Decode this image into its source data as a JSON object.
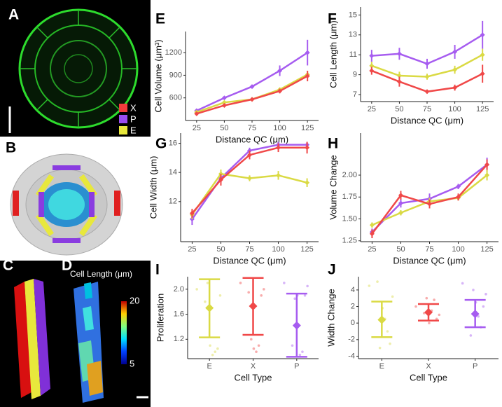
{
  "panel_labels": [
    "A",
    "B",
    "C",
    "D",
    "E",
    "F",
    "G",
    "H",
    "I",
    "J"
  ],
  "legend": [
    {
      "name": "X",
      "color": "#f03c3c"
    },
    {
      "name": "P",
      "color": "#9a4cf0"
    },
    {
      "name": "E",
      "color": "#e8e83c"
    }
  ],
  "colorbar": {
    "title": "Cell Length (μm)",
    "lim": [
      5,
      20
    ],
    "ticks": [
      20,
      5
    ]
  },
  "chart_data": [
    {
      "type": "line",
      "x_label": "Distance QC (μm)",
      "y_label": "Cell Volume (μm³)",
      "x": [
        25,
        50,
        75,
        100,
        125
      ],
      "xlim": [
        15,
        135
      ],
      "xticks": [
        25,
        50,
        75,
        100,
        125
      ],
      "ylim": [
        300,
        1480
      ],
      "yticks": [
        600,
        900,
        1200
      ],
      "series": [
        {
          "color": "#a65cf0",
          "values": [
            430,
            600,
            750,
            960,
            1200
          ],
          "errors": [
            10,
            20,
            20,
            70,
            170
          ]
        },
        {
          "color": "#dada44",
          "values": [
            410,
            540,
            580,
            710,
            910
          ],
          "errors": [
            10,
            15,
            15,
            20,
            40
          ]
        },
        {
          "color": "#f04848",
          "values": [
            390,
            500,
            580,
            690,
            890
          ],
          "errors": [
            10,
            20,
            20,
            30,
            70
          ]
        }
      ]
    },
    {
      "type": "line",
      "x_label": "Distance QC (μm)",
      "y_label": "Cell Length (μm)",
      "x": [
        25,
        50,
        75,
        100,
        125
      ],
      "xlim": [
        15,
        135
      ],
      "xticks": [
        25,
        50,
        75,
        100,
        125
      ],
      "ylim": [
        6.3,
        15.8
      ],
      "yticks": [
        7,
        9,
        11,
        13,
        15
      ],
      "series": [
        {
          "color": "#a65cf0",
          "values": [
            10.9,
            11.1,
            10.1,
            11.3,
            13.0
          ],
          "errors": [
            0.6,
            0.6,
            0.5,
            0.7,
            1.4
          ]
        },
        {
          "color": "#dada44",
          "values": [
            9.9,
            8.9,
            8.8,
            9.5,
            11.0
          ],
          "errors": [
            0.4,
            0.4,
            0.3,
            0.4,
            0.6
          ]
        },
        {
          "color": "#f04848",
          "values": [
            9.4,
            8.3,
            7.3,
            7.7,
            9.1
          ],
          "errors": [
            0.4,
            0.5,
            0.2,
            0.3,
            0.9
          ]
        }
      ]
    },
    {
      "type": "line",
      "x_label": "Distance QC (μm)",
      "y_label": "Cell Width (μm)",
      "x": [
        25,
        50,
        75,
        100,
        125
      ],
      "xlim": [
        15,
        135
      ],
      "xticks": [
        25,
        50,
        75,
        100,
        125
      ],
      "ylim": [
        9.25,
        16.7
      ],
      "yticks": [
        12,
        14,
        16
      ],
      "series": [
        {
          "color": "#a65cf0",
          "values": [
            10.8,
            13.6,
            15.5,
            15.9,
            15.9
          ],
          "errors": [
            0.4,
            0.3,
            0.2,
            0.2,
            0.2
          ]
        },
        {
          "color": "#dada44",
          "values": [
            11.1,
            13.9,
            13.6,
            13.8,
            13.3
          ],
          "errors": [
            0.3,
            0.3,
            0.2,
            0.3,
            0.3
          ]
        },
        {
          "color": "#f04848",
          "values": [
            11.2,
            13.5,
            15.2,
            15.7,
            15.7
          ],
          "errors": [
            0.3,
            0.4,
            0.3,
            0.3,
            0.4
          ]
        }
      ]
    },
    {
      "type": "line",
      "x_label": "Distance QC (μm)",
      "y_label": "Volume Change",
      "x": [
        25,
        50,
        75,
        100,
        125
      ],
      "xlim": [
        15,
        135
      ],
      "xticks": [
        25,
        50,
        75,
        100,
        125
      ],
      "ylim": [
        1.24,
        2.48
      ],
      "yticks": [
        1.25,
        {
          "value": 1.5,
          "label": "1.50"
        },
        1.75,
        {
          "value": 2,
          "label": "2.00"
        }
      ],
      "series": [
        {
          "color": "#a65cf0",
          "values": [
            1.35,
            1.68,
            1.73,
            1.87,
            2.12
          ],
          "errors": [
            0.04,
            0.05,
            0.06,
            0.03,
            0.08
          ]
        },
        {
          "color": "#dada44",
          "values": [
            1.43,
            1.57,
            1.7,
            1.74,
            2.0
          ],
          "errors": [
            0.03,
            0.03,
            0.04,
            0.03,
            0.06
          ]
        },
        {
          "color": "#f04848",
          "values": [
            1.33,
            1.77,
            1.67,
            1.75,
            2.12
          ],
          "errors": [
            0.05,
            0.05,
            0.05,
            0.04,
            0.06
          ]
        }
      ]
    },
    {
      "type": "point-range",
      "x_label": "Cell Type",
      "y_label": "Proliferation",
      "categories": [
        "E",
        "X",
        "P"
      ],
      "colors": [
        "#dada44",
        "#f04848",
        "#a65cf0"
      ],
      "ylim": [
        0.89,
        2.2
      ],
      "yticks": [
        1.2,
        1.6,
        {
          "value": 2,
          "label": "2.0"
        }
      ],
      "means": [
        1.7,
        1.73,
        1.42
      ],
      "lower": [
        1.23,
        1.27,
        0.92
      ],
      "upper": [
        2.16,
        2.18,
        1.93
      ],
      "points": [
        [
          2.0,
          1.9,
          1.05,
          1.0,
          0.95,
          1.1,
          2.1,
          1.8
        ],
        [
          2.1,
          2.0,
          1.9,
          1.1,
          1.0,
          1.05,
          1.2,
          1.95
        ],
        [
          2.1,
          2.05,
          1.9,
          1.0,
          0.95,
          1.9,
          1.85,
          1.1
        ]
      ]
    },
    {
      "type": "point-range",
      "x_label": "Cell Type",
      "y_label": "Width Change",
      "categories": [
        "E",
        "X",
        "P"
      ],
      "colors": [
        "#dada44",
        "#f04848",
        "#a65cf0"
      ],
      "ylim": [
        -4.3,
        5.6
      ],
      "yticks": [
        -4,
        -2,
        0,
        2,
        4
      ],
      "means": [
        0.4,
        1.3,
        1.1
      ],
      "lower": [
        -1.7,
        0.3,
        -0.5
      ],
      "upper": [
        2.6,
        2.3,
        2.8
      ],
      "points": [
        [
          4.5,
          3.2,
          -2.5,
          -1.0,
          0.5,
          1.8,
          -3.0,
          5.0
        ],
        [
          2.0,
          1.0,
          0.5,
          2.8,
          1.5,
          0.0,
          3.0,
          1.2
        ],
        [
          4.8,
          3.5,
          2.0,
          -0.5,
          0.8,
          2.5,
          4.0,
          -1.5
        ]
      ]
    }
  ]
}
